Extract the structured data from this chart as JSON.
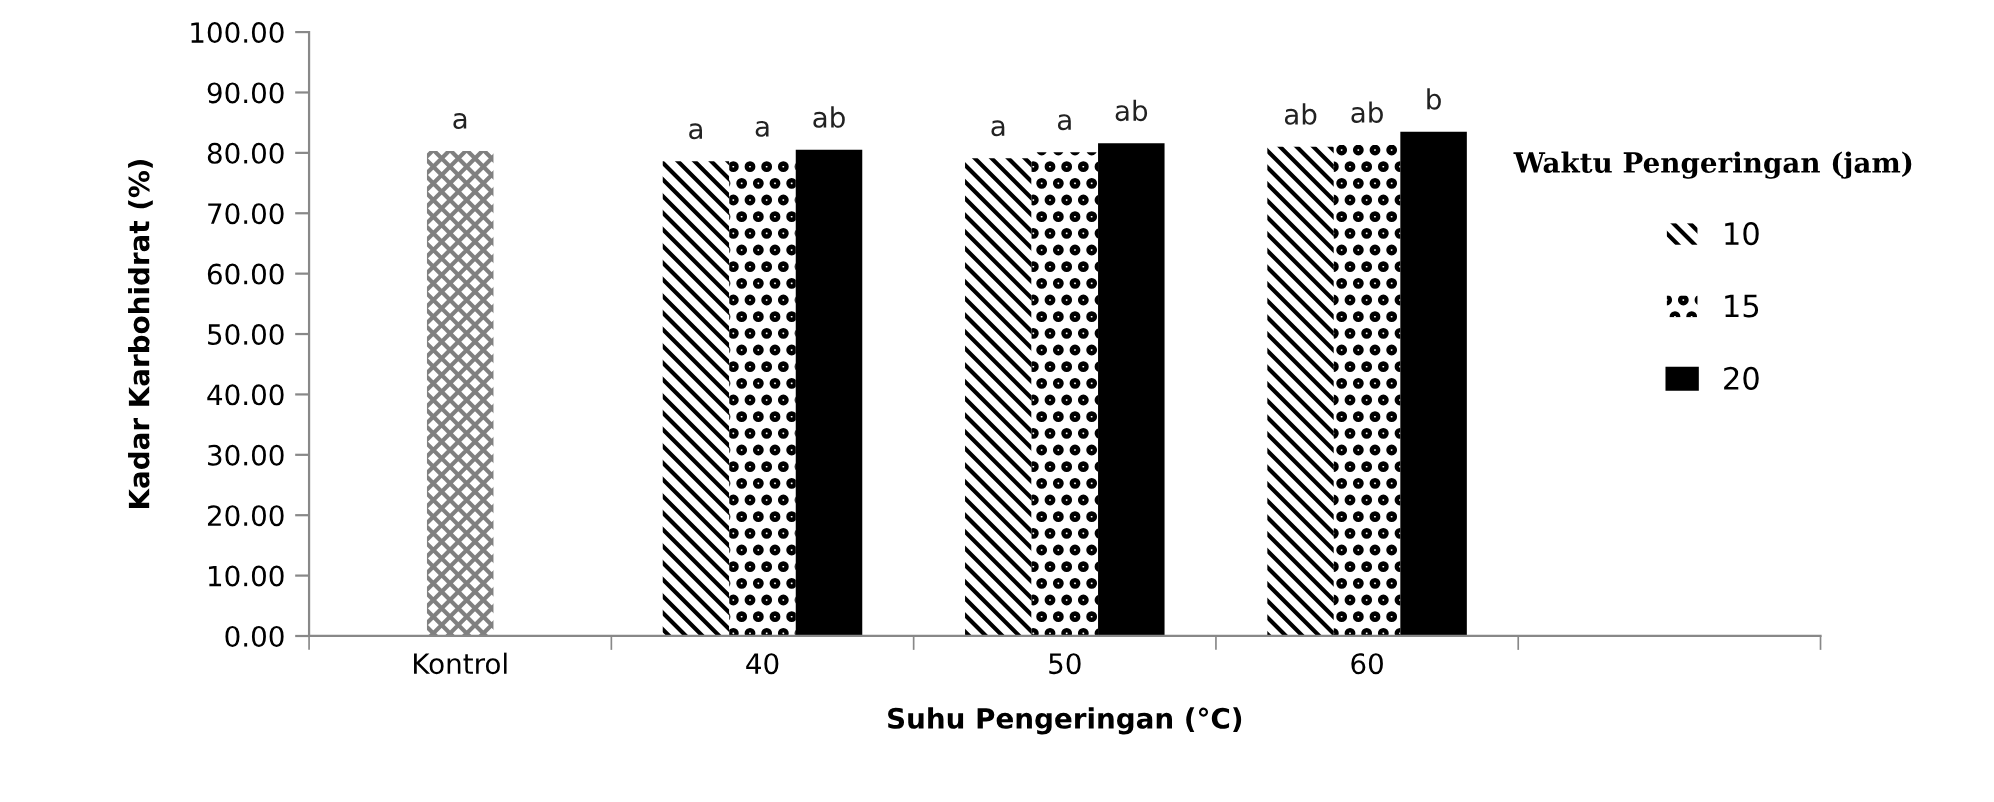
{
  "chart_data": {
    "type": "bar",
    "xlabel": "Suhu Pengeringan (°C)",
    "ylabel": "Kadar Karbohidrat (%)",
    "legend_title": "Waktu Pengeringan (jam)",
    "categories": [
      "Kontrol",
      "40",
      "50",
      "60",
      null
    ],
    "series": [
      {
        "color": "#808080",
        "values": [
          80.3,
          null,
          null,
          null,
          null
        ],
        "value_labels": [
          "a",
          null,
          null,
          null,
          null
        ]
      },
      {
        "name": "10",
        "color": "#000000",
        "values": [
          null,
          78.6,
          79.1,
          81.0,
          null
        ],
        "value_labels": [
          null,
          "a",
          "a",
          "ab",
          null
        ]
      },
      {
        "name": "15",
        "color": "#000000",
        "values": [
          null,
          79.0,
          80.1,
          81.3,
          null
        ],
        "value_labels": [
          null,
          "a",
          "a",
          "ab",
          null
        ]
      },
      {
        "name": "20",
        "color": "#000000",
        "values": [
          null,
          80.5,
          81.6,
          83.5,
          null
        ],
        "value_labels": [
          null,
          "ab",
          "ab",
          "b",
          null
        ]
      }
    ],
    "ylim": [
      0,
      100
    ],
    "yticks": [
      {
        "value": 0,
        "label": "0.00"
      },
      {
        "value": 10,
        "label": "10.00"
      },
      {
        "value": 20,
        "label": "20.00"
      },
      {
        "value": 30,
        "label": "30.00"
      },
      {
        "value": 40,
        "label": "40.00"
      },
      {
        "value": 50,
        "label": "50.00"
      },
      {
        "value": 60,
        "label": "60.00"
      },
      {
        "value": 70,
        "label": "70.00"
      },
      {
        "value": 80,
        "label": "80.00"
      },
      {
        "value": 90,
        "label": "90.00"
      },
      {
        "value": 100,
        "label": "100.00"
      }
    ],
    "grid": false,
    "legend": "right"
  }
}
